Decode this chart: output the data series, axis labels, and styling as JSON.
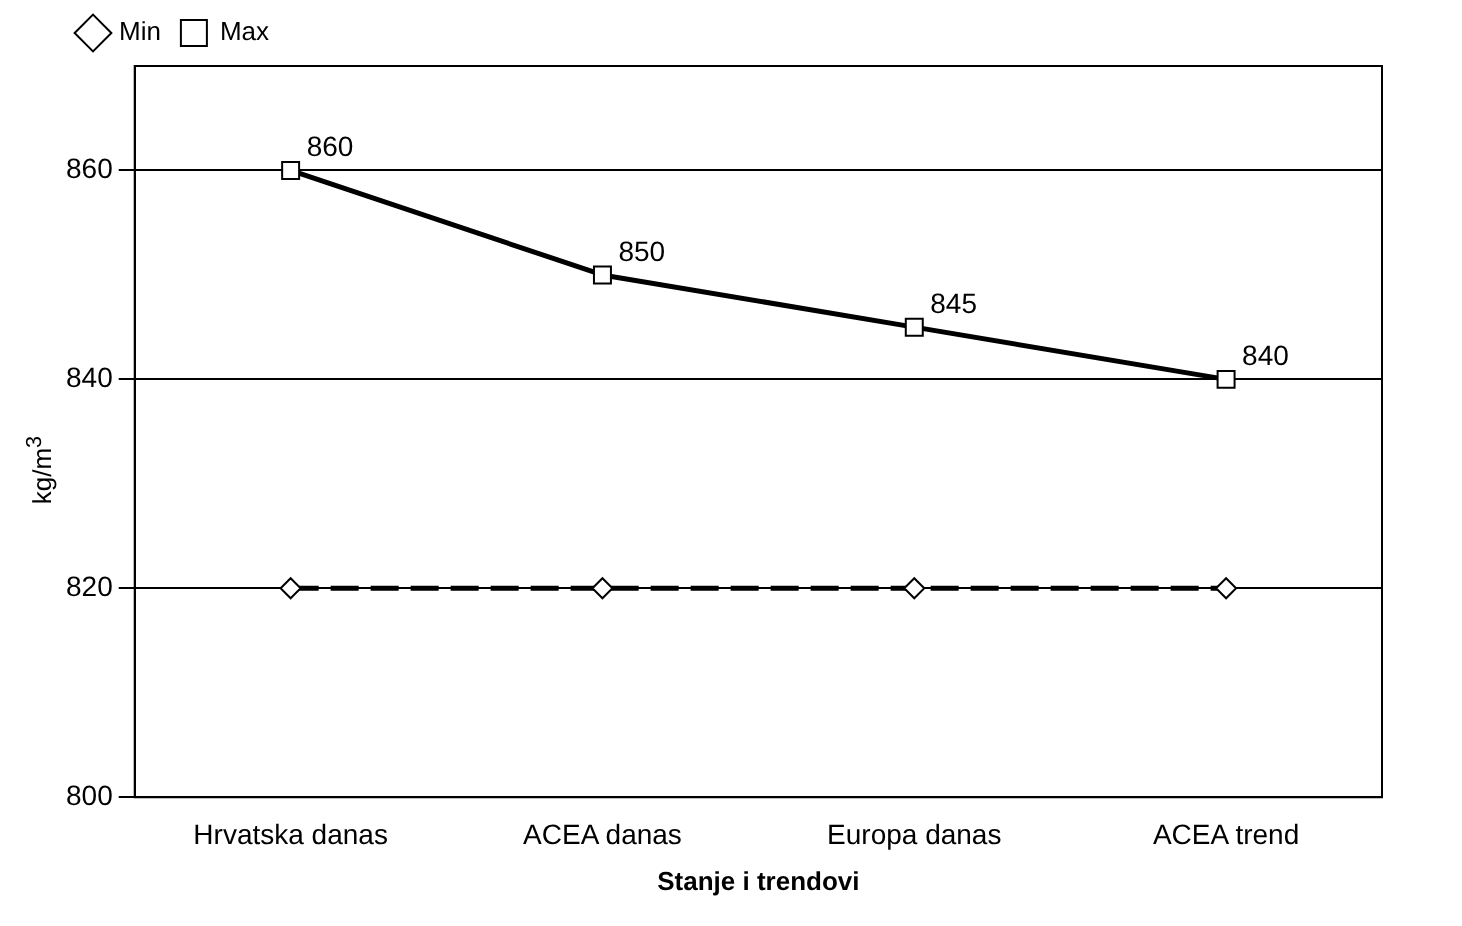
{
  "chart_data": {
    "type": "line",
    "xlabel": "Stanje i trendovi",
    "ylabel": "kg/m$^{3}$",
    "categories": [
      "Hrvatska danas",
      "ACEA danas",
      "Europa danas",
      "ACEA trend"
    ],
    "series": [
      {
        "name": "Min",
        "color": "#000000",
        "values": [
          820,
          820,
          820,
          820
        ],
        "marker": "diamond",
        "line_style": "dashed"
      },
      {
        "name": "Max",
        "color": "#000000",
        "values": [
          860,
          850,
          845,
          840
        ],
        "marker": "square",
        "line_style": "solid",
        "value_labels": [
          "860",
          "850",
          "845",
          "840"
        ]
      }
    ],
    "ylim": [
      800,
      870
    ],
    "yticks": [
      800,
      820,
      840,
      860
    ],
    "grid": "y",
    "legend": "top left"
  }
}
